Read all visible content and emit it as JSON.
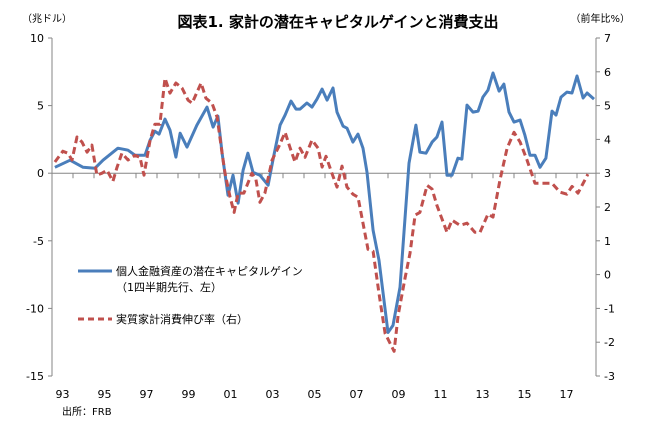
{
  "chart_data": {
    "type": "line",
    "title": "図表1. 家計の潜在キャピタルゲインと消費支出",
    "y_left_label": "（兆ドル）",
    "y_right_label": "（前年比%）",
    "y_left_range": [
      -15,
      10
    ],
    "y_left_ticks": [
      "10",
      "5",
      "0",
      "-5",
      "-10",
      "-15"
    ],
    "y_left_tick_values": [
      10,
      5,
      0,
      -5,
      -10,
      -15
    ],
    "y_right_range": [
      -3,
      7
    ],
    "y_right_ticks": [
      "7",
      "6",
      "5",
      "4",
      "3",
      "2",
      "1",
      "0",
      "-1",
      "-2",
      "-3"
    ],
    "y_right_tick_values": [
      7,
      6,
      5,
      4,
      3,
      2,
      1,
      0,
      -1,
      -2,
      -3
    ],
    "x_range": [
      1993,
      2018.9
    ],
    "x_tick_labels": [
      "93",
      "95",
      "97",
      "99",
      "01",
      "03",
      "05",
      "07",
      "09",
      "11",
      "13",
      "15",
      "17"
    ],
    "x_tick_label_years": [
      1993,
      1995,
      1997,
      1999,
      2001,
      2003,
      2005,
      2007,
      2009,
      2011,
      2013,
      2015,
      2017
    ],
    "grid": false,
    "legend_placement": "center-left",
    "source": "出所：FRB",
    "series": [
      {
        "name": "個人金融資産の潜在キャピタルゲイン",
        "name_line2": "（1四半期先行、左）",
        "axis": "left",
        "color": "#4a7ebb",
        "style": "solid",
        "points": [
          [
            1993.14,
            0.44
          ],
          [
            1993.86,
            0.96
          ],
          [
            1994.48,
            0.44
          ],
          [
            1995.05,
            0.37
          ],
          [
            1995.43,
            0.96
          ],
          [
            1996.14,
            1.85
          ],
          [
            1996.62,
            1.7
          ],
          [
            1996.95,
            1.33
          ],
          [
            1997.43,
            1.33
          ],
          [
            1997.67,
            2.44
          ],
          [
            1997.9,
            3.11
          ],
          [
            1998.1,
            2.89
          ],
          [
            1998.38,
            4.0
          ],
          [
            1998.62,
            3.19
          ],
          [
            1998.9,
            1.19
          ],
          [
            1999.1,
            2.96
          ],
          [
            1999.43,
            1.93
          ],
          [
            1999.9,
            3.56
          ],
          [
            2000.38,
            4.89
          ],
          [
            2000.67,
            3.41
          ],
          [
            2000.9,
            4.22
          ],
          [
            2001.1,
            1.48
          ],
          [
            2001.38,
            -1.63
          ],
          [
            2001.62,
            -0.15
          ],
          [
            2001.86,
            -2.22
          ],
          [
            2002.1,
            0.22
          ],
          [
            2002.33,
            1.48
          ],
          [
            2002.57,
            0.07
          ],
          [
            2002.9,
            -0.15
          ],
          [
            2003.29,
            -0.89
          ],
          [
            2003.52,
            0.96
          ],
          [
            2003.86,
            3.56
          ],
          [
            2004.1,
            4.3
          ],
          [
            2004.38,
            5.33
          ],
          [
            2004.62,
            4.74
          ],
          [
            2004.81,
            4.74
          ],
          [
            2005.14,
            5.19
          ],
          [
            2005.38,
            4.89
          ],
          [
            2005.62,
            5.48
          ],
          [
            2005.86,
            6.22
          ],
          [
            2006.1,
            5.41
          ],
          [
            2006.38,
            6.3
          ],
          [
            2006.57,
            4.52
          ],
          [
            2006.86,
            3.48
          ],
          [
            2007.05,
            3.33
          ],
          [
            2007.33,
            2.3
          ],
          [
            2007.57,
            2.89
          ],
          [
            2007.81,
            1.85
          ],
          [
            2008.0,
            0.07
          ],
          [
            2008.29,
            -4.22
          ],
          [
            2008.57,
            -6.44
          ],
          [
            2009.0,
            -11.78
          ],
          [
            2009.24,
            -11.26
          ],
          [
            2009.57,
            -8.44
          ],
          [
            2010.0,
            0.74
          ],
          [
            2010.33,
            3.56
          ],
          [
            2010.52,
            1.56
          ],
          [
            2010.81,
            1.48
          ],
          [
            2011.1,
            2.3
          ],
          [
            2011.33,
            2.67
          ],
          [
            2011.57,
            3.78
          ],
          [
            2011.81,
            -0.15
          ],
          [
            2012.05,
            -0.15
          ],
          [
            2012.33,
            1.11
          ],
          [
            2012.52,
            1.04
          ],
          [
            2012.76,
            5.04
          ],
          [
            2013.05,
            4.52
          ],
          [
            2013.29,
            4.59
          ],
          [
            2013.52,
            5.63
          ],
          [
            2013.76,
            6.15
          ],
          [
            2014.0,
            7.41
          ],
          [
            2014.29,
            6.07
          ],
          [
            2014.52,
            6.59
          ],
          [
            2014.76,
            4.52
          ],
          [
            2015.0,
            3.78
          ],
          [
            2015.29,
            3.93
          ],
          [
            2015.52,
            2.81
          ],
          [
            2015.76,
            1.33
          ],
          [
            2016.0,
            1.33
          ],
          [
            2016.24,
            0.44
          ],
          [
            2016.52,
            1.11
          ],
          [
            2016.81,
            4.59
          ],
          [
            2017.0,
            4.3
          ],
          [
            2017.24,
            5.63
          ],
          [
            2017.52,
            6.0
          ],
          [
            2017.76,
            5.93
          ],
          [
            2018.0,
            7.19
          ],
          [
            2018.29,
            5.56
          ],
          [
            2018.48,
            5.93
          ],
          [
            2018.81,
            5.48
          ]
        ]
      },
      {
        "name": "実質家計消費伸び率（右）",
        "axis": "right",
        "color": "#c0504d",
        "style": "dashed",
        "points": [
          [
            1993.14,
            3.33
          ],
          [
            1993.52,
            3.65
          ],
          [
            1993.76,
            3.59
          ],
          [
            1993.95,
            3.39
          ],
          [
            1994.19,
            4.07
          ],
          [
            1994.43,
            3.92
          ],
          [
            1994.67,
            3.62
          ],
          [
            1994.9,
            3.83
          ],
          [
            1995.14,
            2.94
          ],
          [
            1995.38,
            3.0
          ],
          [
            1995.62,
            3.09
          ],
          [
            1995.9,
            2.76
          ],
          [
            1996.1,
            3.18
          ],
          [
            1996.33,
            3.59
          ],
          [
            1996.62,
            3.39
          ],
          [
            1996.95,
            3.53
          ],
          [
            1997.19,
            3.47
          ],
          [
            1997.38,
            2.94
          ],
          [
            1997.67,
            3.98
          ],
          [
            1997.9,
            4.45
          ],
          [
            1998.14,
            4.45
          ],
          [
            1998.38,
            5.81
          ],
          [
            1998.62,
            5.37
          ],
          [
            1998.9,
            5.67
          ],
          [
            1999.19,
            5.52
          ],
          [
            1999.48,
            5.16
          ],
          [
            1999.67,
            5.07
          ],
          [
            2000.1,
            5.67
          ],
          [
            2000.33,
            5.22
          ],
          [
            2000.62,
            5.07
          ],
          [
            2000.86,
            4.66
          ],
          [
            2001.1,
            3.59
          ],
          [
            2001.24,
            3.0
          ],
          [
            2001.48,
            2.29
          ],
          [
            2001.67,
            1.84
          ],
          [
            2001.86,
            2.41
          ],
          [
            2002.14,
            2.41
          ],
          [
            2002.52,
            3.0
          ],
          [
            2002.71,
            2.82
          ],
          [
            2002.9,
            2.14
          ],
          [
            2003.14,
            2.41
          ],
          [
            2003.48,
            3.39
          ],
          [
            2003.81,
            3.8
          ],
          [
            2004.1,
            4.21
          ],
          [
            2004.33,
            3.77
          ],
          [
            2004.57,
            3.33
          ],
          [
            2004.81,
            3.74
          ],
          [
            2005.05,
            3.47
          ],
          [
            2005.38,
            3.98
          ],
          [
            2005.67,
            3.74
          ],
          [
            2005.86,
            3.18
          ],
          [
            2006.05,
            3.5
          ],
          [
            2006.33,
            3.0
          ],
          [
            2006.57,
            2.59
          ],
          [
            2006.81,
            3.21
          ],
          [
            2007.05,
            2.59
          ],
          [
            2007.33,
            2.38
          ],
          [
            2007.57,
            2.29
          ],
          [
            2007.81,
            1.52
          ],
          [
            2008.05,
            0.75
          ],
          [
            2008.29,
            0.69
          ],
          [
            2008.57,
            -0.56
          ],
          [
            2008.86,
            -1.74
          ],
          [
            2009.29,
            -2.27
          ],
          [
            2009.48,
            -1.21
          ],
          [
            2009.81,
            -0.11
          ],
          [
            2010.05,
            0.63
          ],
          [
            2010.29,
            1.76
          ],
          [
            2010.52,
            1.84
          ],
          [
            2010.86,
            2.64
          ],
          [
            2011.1,
            2.53
          ],
          [
            2011.33,
            2.05
          ],
          [
            2011.81,
            1.25
          ],
          [
            2012.05,
            1.61
          ],
          [
            2012.43,
            1.46
          ],
          [
            2012.76,
            1.52
          ],
          [
            2013.14,
            1.25
          ],
          [
            2013.38,
            1.25
          ],
          [
            2013.76,
            1.79
          ],
          [
            2014.0,
            1.7
          ],
          [
            2014.33,
            2.79
          ],
          [
            2014.67,
            3.74
          ],
          [
            2015.0,
            4.21
          ],
          [
            2015.29,
            3.92
          ],
          [
            2015.62,
            3.39
          ],
          [
            2016.0,
            2.7
          ],
          [
            2016.43,
            2.7
          ],
          [
            2016.81,
            2.7
          ],
          [
            2017.19,
            2.44
          ],
          [
            2017.52,
            2.38
          ],
          [
            2017.76,
            2.61
          ],
          [
            2018.05,
            2.41
          ],
          [
            2018.52,
            2.97
          ]
        ]
      }
    ]
  }
}
